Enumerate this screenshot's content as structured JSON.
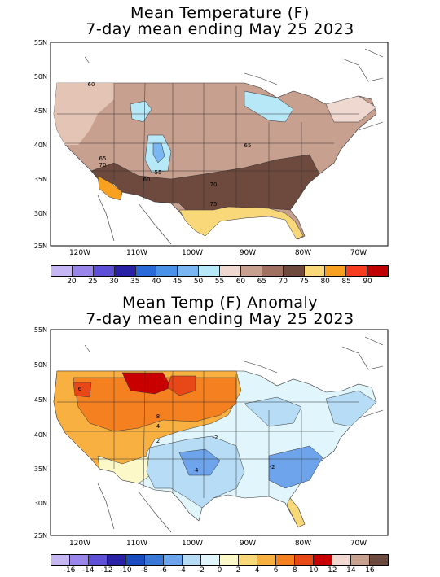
{
  "panel1": {
    "title_line1": "Mean Temperature (F)",
    "title_line2": "7-day mean ending May 25 2023",
    "lat_labels": [
      "55N",
      "50N",
      "45N",
      "40N",
      "35N",
      "30N",
      "25N"
    ],
    "lon_labels": [
      "120W",
      "110W",
      "100W",
      "90W",
      "80W",
      "70W"
    ],
    "contour_labels": [
      "60",
      "65",
      "65",
      "70",
      "60",
      "55",
      "70",
      "75"
    ],
    "legend_labels": [
      "20",
      "25",
      "30",
      "35",
      "40",
      "45",
      "50",
      "55",
      "60",
      "65",
      "70",
      "75",
      "80",
      "85",
      "90"
    ],
    "legend_colors": [
      "#c6b6f4",
      "#9a86ea",
      "#5e50d6",
      "#2a22a6",
      "#2a6ad8",
      "#4a92e8",
      "#7ab6f2",
      "#b6e8f8",
      "#eed8d0",
      "#c8a090",
      "#a07060",
      "#6e4a3e",
      "#f8d878",
      "#f8a020",
      "#f83c1e",
      "#c00000"
    ]
  },
  "panel2": {
    "title_line1": "Mean Temp (F) Anomaly",
    "title_line2": "7-day mean ending May 25 2023",
    "lat_labels": [
      "55N",
      "50N",
      "45N",
      "40N",
      "35N",
      "30N",
      "25N"
    ],
    "lon_labels": [
      "120W",
      "110W",
      "100W",
      "90W",
      "80W",
      "70W"
    ],
    "contour_labels": [
      "6",
      "8",
      "4",
      "2",
      "-2",
      "-4",
      "-2"
    ],
    "legend_labels": [
      "-16",
      "-14",
      "-12",
      "-10",
      "-8",
      "-6",
      "-4",
      "-2",
      "0",
      "2",
      "4",
      "6",
      "8",
      "10",
      "12",
      "14",
      "16"
    ],
    "legend_colors": [
      "#c6b6f4",
      "#9a86ea",
      "#5e50d6",
      "#2a22a6",
      "#1a4cc0",
      "#3a78d8",
      "#6ea4ec",
      "#b6dcf6",
      "#e0f6fc",
      "#fcf8c8",
      "#f8d878",
      "#f8b040",
      "#f48020",
      "#e84818",
      "#c80000",
      "#eed8d0",
      "#c8a090",
      "#6e4a3e"
    ]
  }
}
